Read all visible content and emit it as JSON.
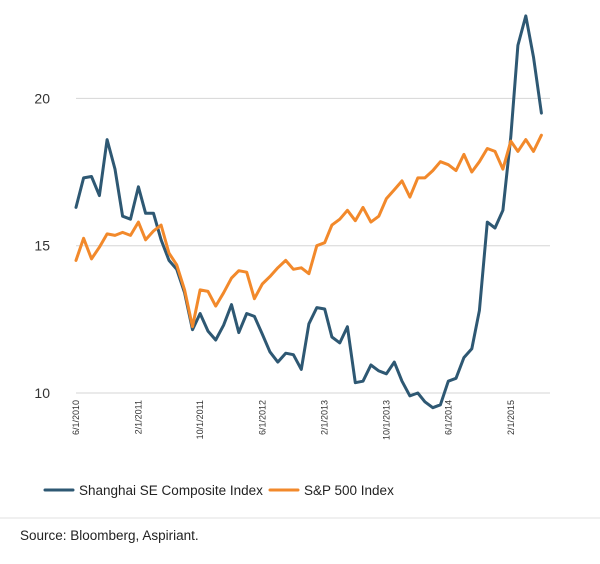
{
  "chart_data": {
    "type": "line",
    "ylim": [
      10,
      23
    ],
    "y_ticks": [
      10,
      15,
      20
    ],
    "y_tick_labels": [
      "10",
      "15",
      "20"
    ],
    "x_start": "2010-06-01",
    "x_end": "2015-07-01",
    "x_ticks": [
      "2010-06-01",
      "2011-02-01",
      "2011-10-01",
      "2012-06-01",
      "2013-02-01",
      "2013-10-01",
      "2014-06-01",
      "2015-02-01"
    ],
    "x_tick_labels": [
      "6/1/2010",
      "2/1/2011",
      "10/1/2011",
      "6/1/2012",
      "2/1/2013",
      "10/1/2013",
      "6/1/2014",
      "2/1/2015"
    ],
    "grid": "horizontal",
    "legend_position": "bottom",
    "series": [
      {
        "name": "Shanghai SE Composite Index",
        "color": "#2e5873",
        "values": [
          16.3,
          17.3,
          17.35,
          16.7,
          18.6,
          17.6,
          16.0,
          15.9,
          17.0,
          16.1,
          16.1,
          15.2,
          14.5,
          14.2,
          13.4,
          12.15,
          12.7,
          12.1,
          11.8,
          12.3,
          13.0,
          12.05,
          12.7,
          12.6,
          12.0,
          11.4,
          11.05,
          11.35,
          11.3,
          10.8,
          12.35,
          12.9,
          12.85,
          11.9,
          11.7,
          12.25,
          10.35,
          10.4,
          10.95,
          10.75,
          10.65,
          11.05,
          10.4,
          9.9,
          10.0,
          9.7,
          9.5,
          9.6,
          10.4,
          10.5,
          11.2,
          11.5,
          12.8,
          15.8,
          15.6,
          16.2,
          18.7,
          21.8,
          22.8,
          21.4,
          19.5
        ]
      },
      {
        "name": "S&P 500 Index",
        "color": "#f2892b",
        "values": [
          14.5,
          15.25,
          14.55,
          14.95,
          15.4,
          15.35,
          15.45,
          15.35,
          15.8,
          15.2,
          15.5,
          15.7,
          14.75,
          14.35,
          13.5,
          12.25,
          13.5,
          13.45,
          12.95,
          13.4,
          13.9,
          14.15,
          14.1,
          13.2,
          13.7,
          13.95,
          14.25,
          14.5,
          14.2,
          14.25,
          14.05,
          15.0,
          15.1,
          15.7,
          15.9,
          16.2,
          15.85,
          16.3,
          15.8,
          16.0,
          16.6,
          16.9,
          17.2,
          16.65,
          17.3,
          17.3,
          17.55,
          17.85,
          17.75,
          17.55,
          18.1,
          17.5,
          17.85,
          18.3,
          18.2,
          17.6,
          18.55,
          18.2,
          18.6,
          18.2,
          18.75
        ]
      }
    ],
    "source_note": "Source: Bloomberg, Aspiriant."
  }
}
